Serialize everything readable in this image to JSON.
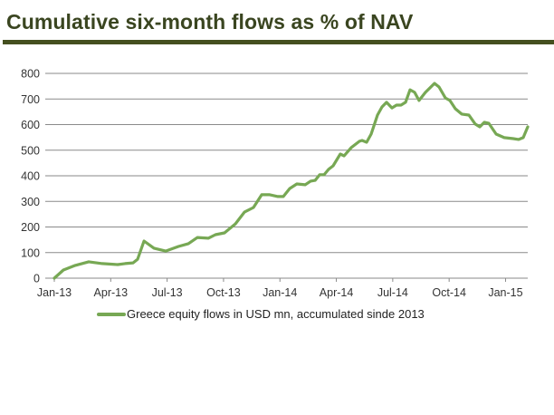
{
  "chart_data": {
    "type": "line",
    "title": "Cumulative six-month flows as % of NAV",
    "xlabel": "",
    "ylabel": "",
    "ylim": [
      0,
      800
    ],
    "yticks": [
      0,
      100,
      200,
      300,
      400,
      500,
      600,
      700,
      800
    ],
    "xticks": [
      {
        "label": "Jan-13",
        "month": 0
      },
      {
        "label": "Apr-13",
        "month": 3
      },
      {
        "label": "Jul-13",
        "month": 6
      },
      {
        "label": "Oct-13",
        "month": 9
      },
      {
        "label": "Jan-14",
        "month": 12
      },
      {
        "label": "Apr-14",
        "month": 15
      },
      {
        "label": "Jul-14",
        "month": 18
      },
      {
        "label": "Oct-14",
        "month": 21
      },
      {
        "label": "Jan-15",
        "month": 24
      }
    ],
    "xlim_months_since_jan13": [
      -0.5,
      25.2
    ],
    "grid": true,
    "legend_position": "bottom",
    "color": "#77a854",
    "series": [
      {
        "name": "Greece equity flows in USD mn, accumulated sinde 2013",
        "x_months_since_jan13": [
          0,
          0.48,
          1.11,
          1.83,
          2.55,
          3.37,
          3.76,
          4.19,
          4.43,
          4.77,
          5.3,
          5.92,
          6.6,
          7.13,
          7.61,
          8.19,
          8.57,
          9.05,
          9.63,
          10.11,
          10.59,
          11.03,
          11.46,
          11.89,
          12.18,
          12.52,
          12.9,
          13.34,
          13.63,
          13.87,
          14.11,
          14.35,
          14.59,
          14.83,
          15.21,
          15.41,
          15.79,
          16.23,
          16.37,
          16.61,
          16.85,
          17.19,
          17.43,
          17.67,
          17.96,
          18.2,
          18.44,
          18.68,
          18.92,
          19.16,
          19.4,
          19.74,
          20.22,
          20.46,
          20.8,
          21.04,
          21.33,
          21.67,
          22.05,
          22.39,
          22.63,
          22.87,
          23.11,
          23.5,
          23.93,
          24.41,
          24.7,
          24.94,
          25.18
        ],
        "values": [
          0,
          32,
          50,
          64,
          57,
          53,
          57,
          60,
          74,
          145,
          117,
          106,
          124,
          135,
          159,
          156,
          170,
          177,
          212,
          258,
          276,
          326,
          326,
          319,
          319,
          350,
          368,
          365,
          379,
          382,
          404,
          404,
          425,
          439,
          485,
          478,
          510,
          535,
          538,
          531,
          563,
          637,
          669,
          687,
          665,
          676,
          676,
          687,
          736,
          726,
          694,
          726,
          761,
          747,
          704,
          694,
          662,
          641,
          637,
          602,
          591,
          609,
          605,
          563,
          549,
          545,
          542,
          549,
          591
        ]
      }
    ]
  }
}
